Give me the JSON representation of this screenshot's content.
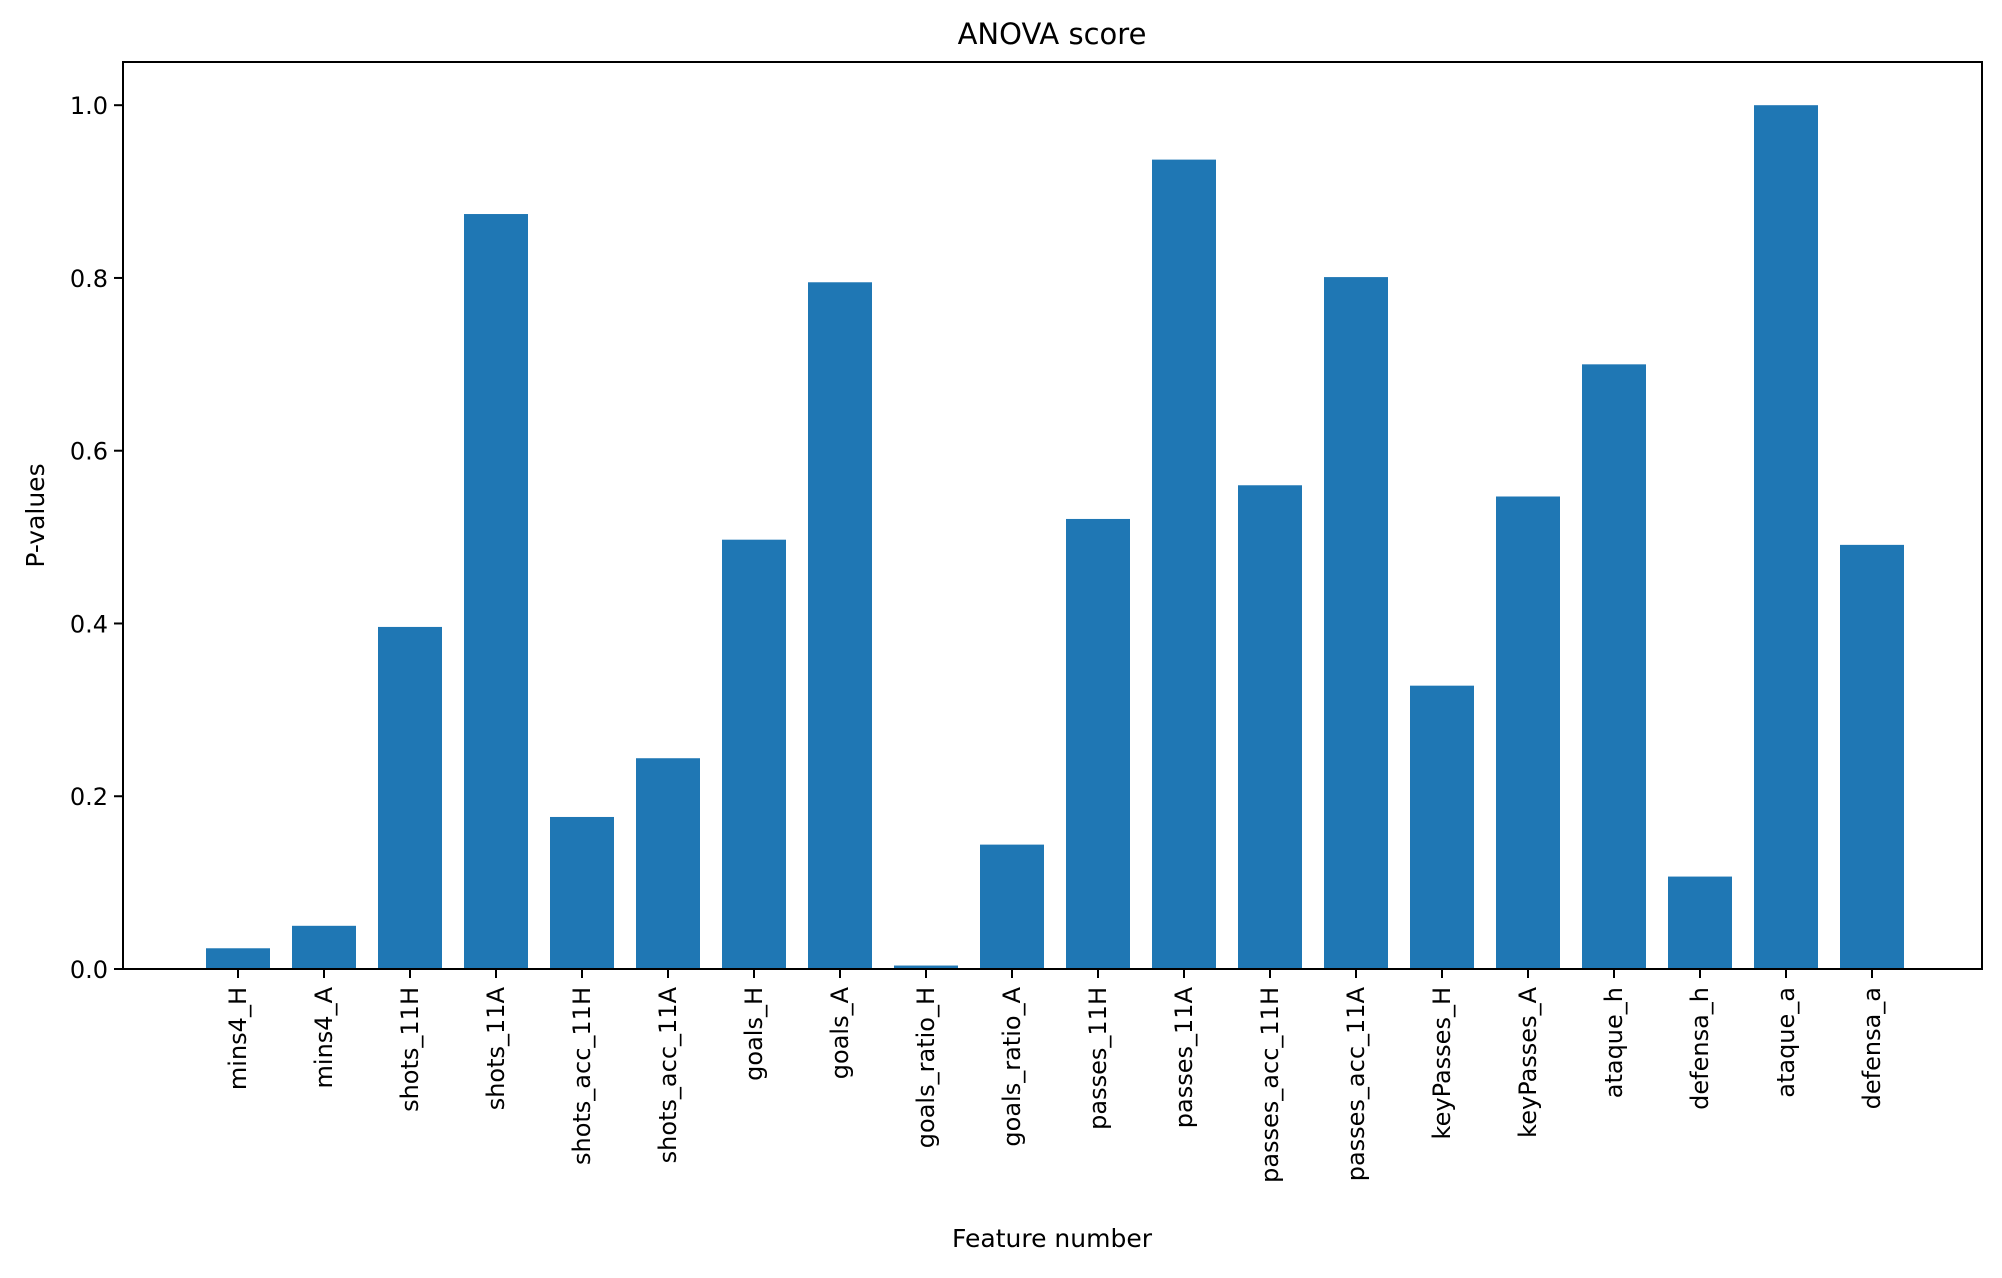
{
  "chart_data": {
    "type": "bar",
    "title": "ANOVA score",
    "xlabel": "Feature number",
    "ylabel": "P-values",
    "categories": [
      "mins4_H",
      "mins4_A",
      "shots_11H",
      "shots_11A",
      "shots_acc_11H",
      "shots_acc_11A",
      "goals_H",
      "goals_A",
      "goals_ratio_H",
      "goals_ratio_A",
      "passes_11H",
      "passes_11A",
      "passes_acc_11H",
      "passes_acc_11A",
      "keyPasses_H",
      "keyPasses_A",
      "ataque_h",
      "defensa_h",
      "ataque_a",
      "defensa_a"
    ],
    "values": [
      0.024,
      0.05,
      0.396,
      0.874,
      0.176,
      0.244,
      0.497,
      0.795,
      0.004,
      0.144,
      0.521,
      0.937,
      0.56,
      0.801,
      0.328,
      0.547,
      0.7,
      0.107,
      1.0,
      0.491
    ],
    "ylim": [
      0,
      1.05
    ],
    "yticks": [
      "0.0",
      "0.2",
      "0.4",
      "0.6",
      "0.8",
      "1.0"
    ],
    "bar_color": "#1f77b4",
    "grid": false
  }
}
